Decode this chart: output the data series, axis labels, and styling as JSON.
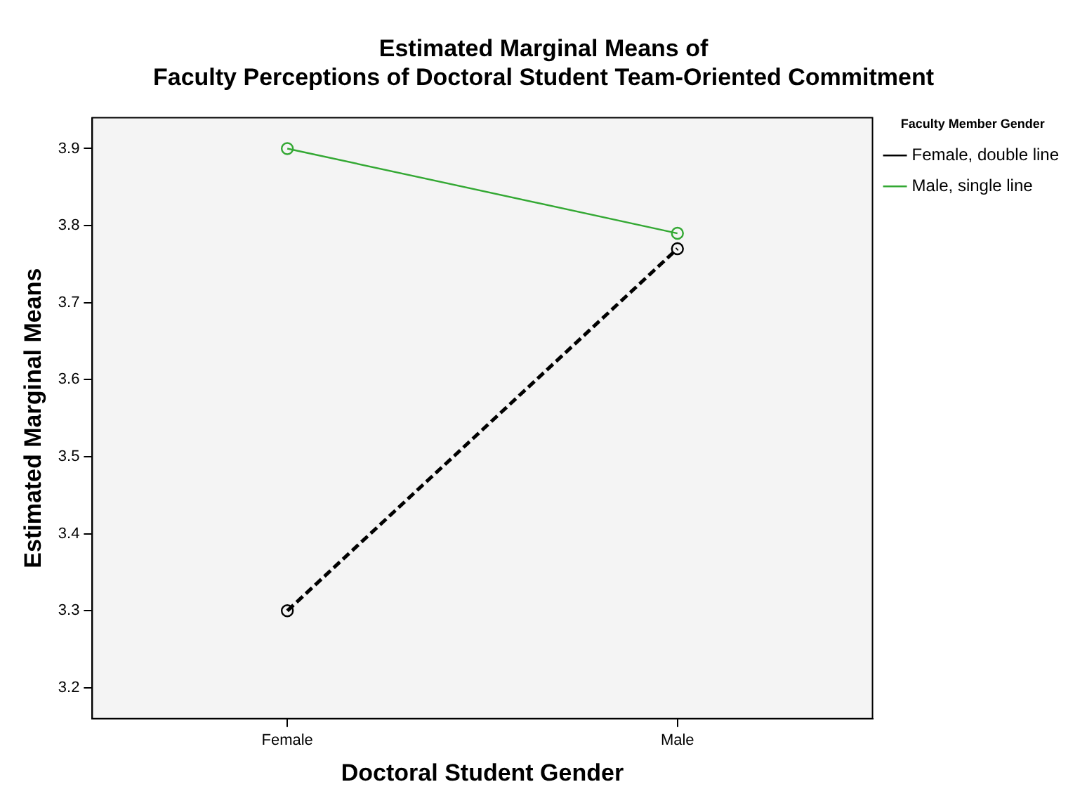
{
  "chart_data": {
    "type": "line",
    "title": "Estimated Marginal Means of\nFaculty Perceptions of Doctoral Student Team-Oriented Commitment",
    "xlabel": "Doctoral Student Gender",
    "ylabel": "Estimated Marginal Means",
    "legend_title": "Faculty Member Gender",
    "categories": [
      "Female",
      "Male"
    ],
    "series": [
      {
        "name": "Female, double line",
        "color": "#000000",
        "values": [
          3.3,
          3.77
        ],
        "line_style": "dashed"
      },
      {
        "name": "Male, single line",
        "color": "#33a833",
        "values": [
          3.9,
          3.79
        ],
        "line_style": "solid"
      }
    ],
    "ylim": [
      3.16,
      3.94
    ],
    "yticks": [
      3.2,
      3.3,
      3.4,
      3.5,
      3.6,
      3.7,
      3.8,
      3.9
    ],
    "grid": false,
    "legend": "top right",
    "marker": "circle"
  }
}
